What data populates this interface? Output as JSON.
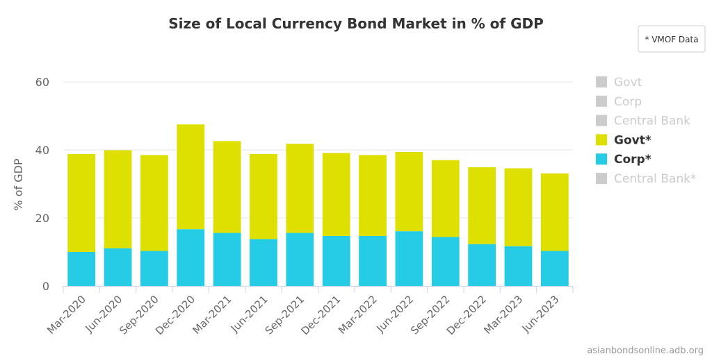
{
  "chart_data": {
    "type": "bar",
    "stacked": true,
    "title": "Size of Local Currency Bond Market in % of GDP",
    "ylabel": "% of GDP",
    "xlabel": "",
    "ylim": [
      0,
      60
    ],
    "yticks": [
      "0",
      "20",
      "40",
      "60"
    ],
    "categories": [
      "Mar-2020",
      "Jun-2020",
      "Sep-2020",
      "Dec-2020",
      "Mar-2021",
      "Jun-2021",
      "Sep-2021",
      "Dec-2021",
      "Mar-2022",
      "Jun-2022",
      "Sep-2022",
      "Dec-2022",
      "Mar-2023",
      "Jun-2023"
    ],
    "series": [
      {
        "name": "Corp*",
        "color": "#26cce6",
        "values": [
          10.0,
          11.1,
          10.3,
          16.7,
          15.6,
          13.8,
          15.6,
          14.7,
          14.7,
          16.1,
          14.4,
          12.3,
          11.7,
          10.3
        ]
      },
      {
        "name": "Govt*",
        "color": "#dde000",
        "values": [
          28.8,
          28.8,
          28.2,
          30.8,
          27.0,
          25.0,
          26.2,
          24.4,
          23.8,
          23.3,
          22.6,
          22.6,
          22.9,
          22.8
        ]
      }
    ],
    "legend": {
      "position": "right",
      "entries": [
        {
          "label": "Govt",
          "color": "#cccccc",
          "active": false
        },
        {
          "label": "Corp",
          "color": "#cccccc",
          "active": false
        },
        {
          "label": "Central Bank",
          "color": "#cccccc",
          "active": false
        },
        {
          "label": "Govt*",
          "color": "#dde000",
          "active": true
        },
        {
          "label": "Corp*",
          "color": "#26cce6",
          "active": true
        },
        {
          "label": "Central Bank*",
          "color": "#cccccc",
          "active": false
        }
      ]
    },
    "button_label": "* VMOF Data",
    "credit": "asianbondsonline.adb.org"
  }
}
